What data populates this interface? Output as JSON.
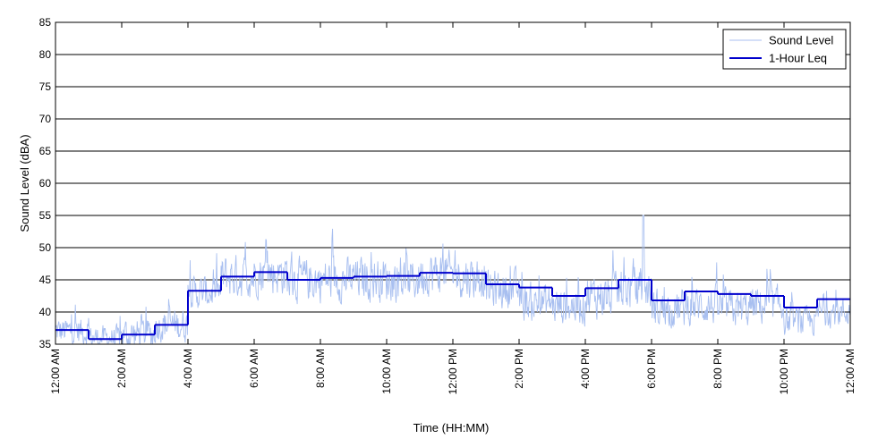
{
  "chart_data": {
    "type": "line",
    "title": "",
    "xlabel": "Time (HH:MM)",
    "ylabel": "Sound Level (dBA)",
    "ylim": [
      35,
      85
    ],
    "xlim_hours": [
      0,
      24
    ],
    "grid": "horizontal",
    "legend_position": "top-right",
    "y_ticks": [
      "35",
      "40",
      "45",
      "50",
      "55",
      "60",
      "65",
      "70",
      "75",
      "80",
      "85"
    ],
    "x_ticks": [
      {
        "hour": 0,
        "label": "12:00 AM"
      },
      {
        "hour": 2,
        "label": "2:00 AM"
      },
      {
        "hour": 4,
        "label": "4:00 AM"
      },
      {
        "hour": 6,
        "label": "6:00 AM"
      },
      {
        "hour": 8,
        "label": "8:00 AM"
      },
      {
        "hour": 10,
        "label": "10:00 AM"
      },
      {
        "hour": 12,
        "label": "12:00 PM"
      },
      {
        "hour": 14,
        "label": "2:00 PM"
      },
      {
        "hour": 16,
        "label": "4:00 PM"
      },
      {
        "hour": 18,
        "label": "6:00 PM"
      },
      {
        "hour": 20,
        "label": "8:00 PM"
      },
      {
        "hour": 22,
        "label": "10:00 PM"
      },
      {
        "hour": 24,
        "label": "12:00 AM"
      }
    ],
    "series": [
      {
        "name": "Sound Level",
        "color": "#a8bff0",
        "style": "thin-line",
        "hourly_center": [
          37.0,
          36.0,
          36.5,
          38.0,
          43.0,
          45.5,
          46.0,
          45.0,
          45.0,
          45.2,
          45.0,
          46.0,
          45.5,
          43.5,
          41.5,
          41.0,
          42.5,
          43.5,
          40.5,
          41.0,
          40.5,
          41.0,
          38.5,
          40.0
        ],
        "hourly_spread": [
          3.0,
          2.5,
          3.5,
          3.5,
          3.5,
          4.5,
          4.5,
          4.5,
          4.5,
          4.5,
          4.5,
          4.5,
          4.5,
          4.0,
          4.0,
          4.0,
          4.5,
          4.5,
          4.0,
          4.0,
          4.0,
          4.0,
          3.0,
          3.0
        ],
        "peak": {
          "hour": 17.75,
          "value": 55
        }
      },
      {
        "name": "1-Hour Leq",
        "color": "#0000cc",
        "style": "step",
        "hours": [
          0,
          1,
          2,
          3,
          4,
          5,
          6,
          7,
          8,
          9,
          10,
          11,
          12,
          13,
          14,
          15,
          16,
          17,
          18,
          19,
          20,
          21,
          22,
          23
        ],
        "values": [
          37.2,
          35.8,
          36.5,
          38.0,
          43.3,
          45.5,
          46.2,
          45.0,
          45.3,
          45.5,
          45.6,
          46.1,
          46.0,
          44.3,
          43.8,
          42.5,
          43.7,
          45.0,
          41.8,
          43.2,
          42.8,
          42.5,
          40.7,
          42.0
        ]
      }
    ]
  }
}
